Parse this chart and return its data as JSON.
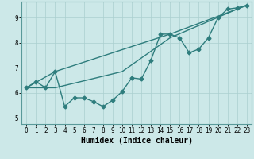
{
  "xlabel": "Humidex (Indice chaleur)",
  "bg_color": "#cce8e8",
  "line_color": "#2e7d7d",
  "grid_color": "#aacfcf",
  "xlim": [
    -0.5,
    23.5
  ],
  "ylim": [
    4.75,
    9.65
  ],
  "xticks": [
    0,
    1,
    2,
    3,
    4,
    5,
    6,
    7,
    8,
    9,
    10,
    11,
    12,
    13,
    14,
    15,
    16,
    17,
    18,
    19,
    20,
    21,
    22,
    23
  ],
  "yticks": [
    5,
    6,
    7,
    8,
    9
  ],
  "line1_x": [
    0,
    1,
    2,
    3,
    4,
    5,
    6,
    7,
    8,
    9,
    10,
    11,
    12,
    13,
    14,
    15,
    16,
    17,
    18,
    19,
    20,
    21,
    22,
    23
  ],
  "line1_y": [
    6.2,
    6.45,
    6.2,
    6.85,
    5.45,
    5.8,
    5.8,
    5.65,
    5.45,
    5.7,
    6.05,
    6.6,
    6.55,
    7.3,
    8.35,
    8.35,
    8.2,
    7.6,
    7.75,
    8.2,
    9.0,
    9.35,
    9.4,
    9.5
  ],
  "line2_x": [
    0,
    3,
    15,
    22,
    23
  ],
  "line2_y": [
    6.2,
    6.85,
    8.35,
    9.35,
    9.5
  ],
  "line3_x": [
    0,
    3,
    10,
    15,
    22,
    23
  ],
  "line3_y": [
    6.2,
    6.2,
    6.85,
    8.2,
    9.35,
    9.5
  ],
  "marker_size": 2.5,
  "line_width": 1.0,
  "xlabel_fontsize": 7,
  "tick_fontsize": 5.5
}
